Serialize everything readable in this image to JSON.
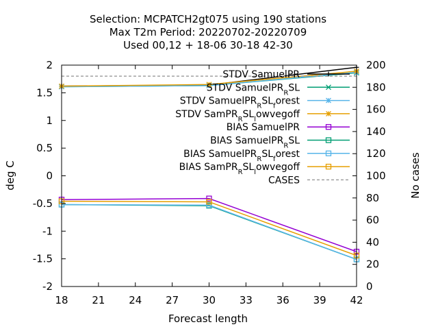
{
  "titles": [
    "Selection: MCPATCH2gt075 using   190 stations",
    "Max T2m   Period: 20220702-20220709",
    "Used  00,12  + 18-06 30-18 42-30"
  ],
  "chart_data": {
    "type": "line",
    "xlabel": "Forecast length",
    "ylabel": "deg C",
    "y2label": "No cases",
    "xlim": [
      18,
      42
    ],
    "ylim": [
      -2,
      2
    ],
    "y2lim": [
      0,
      200
    ],
    "xticks": [
      "18",
      "21",
      "24",
      "27",
      "30",
      "33",
      "36",
      "39",
      "42"
    ],
    "yticks": [
      "-2",
      "-1.5",
      "-1",
      "-0.5",
      "0",
      "0.5",
      "1",
      "1.5",
      "2"
    ],
    "y2ticks": [
      "0",
      "20",
      "40",
      "60",
      "80",
      "100",
      "120",
      "140",
      "160",
      "180",
      "200"
    ],
    "x": [
      18,
      30,
      42
    ],
    "grid": false,
    "legend_position": "top-right inside plot",
    "series": [
      {
        "name": "STDV SamuelPR",
        "legend": [
          {
            "t": "STDV SamuelPR"
          }
        ],
        "marker": "plus",
        "color": "#000000",
        "values": [
          1.62,
          1.64,
          1.96
        ]
      },
      {
        "name": "STDV SamuelPR_RSL",
        "legend": [
          {
            "t": "STDV SamuelPR"
          },
          {
            "t": "R",
            "sub": true
          },
          {
            "t": "SL"
          }
        ],
        "marker": "x",
        "color": "#009e73",
        "values": [
          1.61,
          1.63,
          1.86
        ]
      },
      {
        "name": "STDV SamuelPR_RSL_forest",
        "legend": [
          {
            "t": "STDV SamuelPR"
          },
          {
            "t": "R",
            "sub": true
          },
          {
            "t": "SL"
          },
          {
            "t": "f",
            "sub": true
          },
          {
            "t": "orest"
          }
        ],
        "marker": "star",
        "color": "#56b4e9",
        "values": [
          1.61,
          1.63,
          1.87
        ]
      },
      {
        "name": "STDV SamPR_RSL_lowvegoff",
        "legend": [
          {
            "t": "STDV SamPR"
          },
          {
            "t": "R",
            "sub": true
          },
          {
            "t": "SL"
          },
          {
            "t": "l",
            "sub": true
          },
          {
            "t": "owvegoff"
          }
        ],
        "marker": "star",
        "color": "#e69f00",
        "values": [
          1.62,
          1.65,
          1.89
        ]
      },
      {
        "name": "BIAS SamuelPR",
        "legend": [
          {
            "t": "BIAS SamuelPR"
          }
        ],
        "marker": "square",
        "color": "#9400d3",
        "values": [
          -0.43,
          -0.41,
          -1.37
        ]
      },
      {
        "name": "BIAS SamuelPR_RSL",
        "legend": [
          {
            "t": "BIAS SamuelPR"
          },
          {
            "t": "R",
            "sub": true
          },
          {
            "t": "SL"
          }
        ],
        "marker": "square",
        "color": "#009e73",
        "values": [
          -0.52,
          -0.54,
          -1.51
        ]
      },
      {
        "name": "BIAS SamuelPR_RSL_forest",
        "legend": [
          {
            "t": "BIAS SamuelPR"
          },
          {
            "t": "R",
            "sub": true
          },
          {
            "t": "SL"
          },
          {
            "t": "f",
            "sub": true
          },
          {
            "t": "orest"
          }
        ],
        "marker": "square",
        "color": "#56b4e9",
        "values": [
          -0.52,
          -0.53,
          -1.51
        ]
      },
      {
        "name": "BIAS SamPR_RSL_lowvegoff",
        "legend": [
          {
            "t": "BIAS SamPR"
          },
          {
            "t": "R",
            "sub": true
          },
          {
            "t": "SL"
          },
          {
            "t": "l",
            "sub": true
          },
          {
            "t": "owvegoff"
          }
        ],
        "marker": "square",
        "color": "#e69f00",
        "values": [
          -0.46,
          -0.47,
          -1.44
        ]
      },
      {
        "name": "CASES",
        "legend": [
          {
            "t": "CASES"
          }
        ],
        "marker": "none",
        "dash": true,
        "axis": "y2",
        "color": "#a0a0a0",
        "values": [
          190,
          190,
          190
        ]
      }
    ]
  }
}
